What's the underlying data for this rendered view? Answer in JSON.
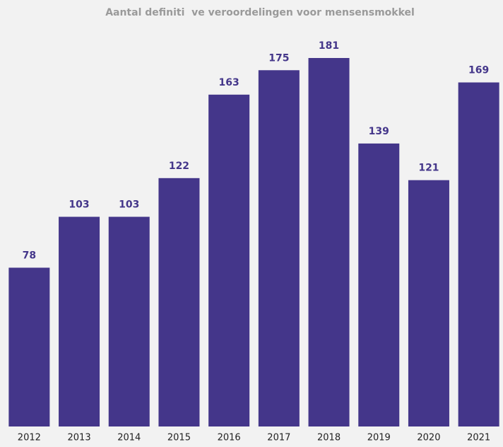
{
  "chart_data": {
    "type": "bar",
    "title": "Aantal definiti  ve veroordelingen voor mensensmokkel",
    "categories": [
      "2012",
      "2013",
      "2014",
      "2015",
      "2016",
      "2017",
      "2018",
      "2019",
      "2020",
      "2021"
    ],
    "values": [
      78,
      103,
      103,
      122,
      163,
      175,
      181,
      139,
      121,
      169
    ],
    "color": "#44368a"
  }
}
